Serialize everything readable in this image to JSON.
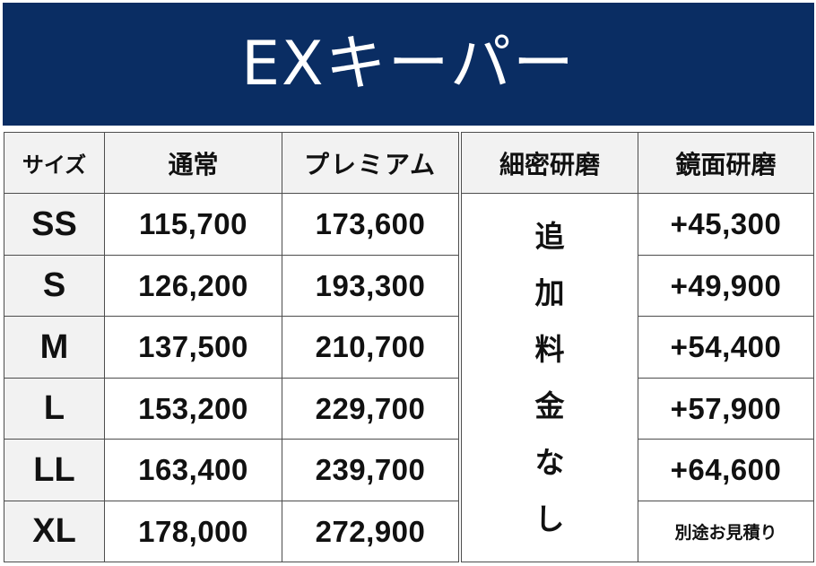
{
  "title": "EXキーパー",
  "headers": [
    "サイズ",
    "通常",
    "プレミアム",
    "細密研磨",
    "鏡面研磨"
  ],
  "rows": [
    {
      "size": "SS",
      "standard": "115,700",
      "premium": "173,600",
      "mirror": "+45,300"
    },
    {
      "size": "S",
      "standard": "126,200",
      "premium": "193,300",
      "mirror": "+49,900"
    },
    {
      "size": "M",
      "standard": "137,500",
      "premium": "210,700",
      "mirror": "+54,400"
    },
    {
      "size": "L",
      "standard": "153,200",
      "premium": "229,700",
      "mirror": "+57,900"
    },
    {
      "size": "LL",
      "standard": "163,400",
      "premium": "239,700",
      "mirror": "+64,600"
    },
    {
      "size": "XL",
      "standard": "178,000",
      "premium": "272,900",
      "mirror": "別途お見積り"
    }
  ],
  "fine_polish_note": [
    "追",
    "加",
    "料",
    "金",
    "な",
    "し"
  ],
  "colors": {
    "banner": "#0a2d63",
    "header_bg": "#f2f2f2",
    "border": "#4d4d4d"
  }
}
